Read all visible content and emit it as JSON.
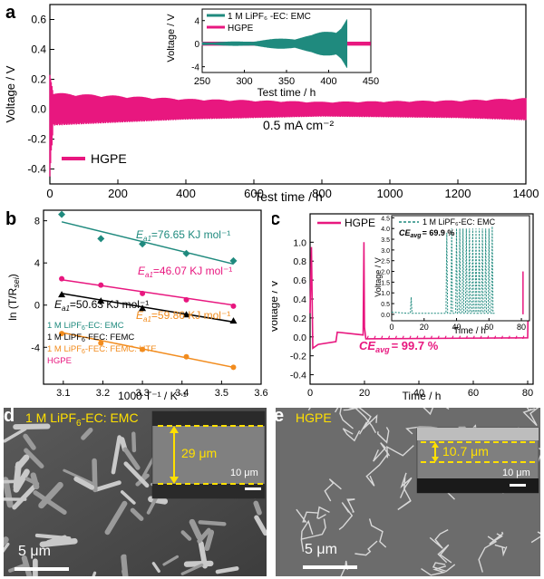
{
  "panels": {
    "a": {
      "letter": "a"
    },
    "b": {
      "letter": "b"
    },
    "c": {
      "letter": "c"
    },
    "d": {
      "letter": "d"
    },
    "e": {
      "letter": "e"
    }
  },
  "colors": {
    "hgpe": "#e8177f",
    "lipf6_ec_emc": "#1f8a7e",
    "fec_femc": "#000000",
    "fec_femc_hte": "#f28c1e",
    "dim_line": "#ffe000"
  },
  "chart_data": [
    {
      "id": "a-main",
      "type": "line",
      "xlabel": "Test time / h",
      "ylabel": "Voltage / V",
      "xlim": [
        0,
        1400
      ],
      "ylim": [
        -0.5,
        0.7
      ],
      "xticks": [
        "0",
        "200",
        "400",
        "600",
        "800",
        "1000",
        "1200",
        "1400"
      ],
      "yticks": [
        "-0.4",
        "-0.2",
        "0.0",
        "0.2",
        "0.4",
        "0.6"
      ],
      "annotation": "0.5 mA cm⁻²",
      "series": [
        {
          "name": "HGPE",
          "x_start": 0,
          "x_end": 1400,
          "envelope_upper": [
            [
              0,
              0.27
            ],
            [
              10,
              0.11
            ],
            [
              400,
              0.07
            ],
            [
              800,
              0.05
            ],
            [
              1200,
              0.06
            ],
            [
              1400,
              0.075
            ]
          ],
          "envelope_lower": [
            [
              0,
              -0.45
            ],
            [
              10,
              -0.11
            ],
            [
              400,
              -0.07
            ],
            [
              800,
              -0.05
            ],
            [
              1200,
              -0.06
            ],
            [
              1400,
              -0.075
            ]
          ]
        }
      ],
      "legend": "bottom-left",
      "inset": {
        "type": "line",
        "xlabel": "Test time / h",
        "ylabel": "Voltage / V",
        "xlim": [
          250,
          450
        ],
        "ylim": [
          -5,
          6
        ],
        "xticks": [
          "250",
          "300",
          "350",
          "400",
          "450"
        ],
        "yticks": [
          "-4",
          "0",
          "4"
        ],
        "series": [
          {
            "name": "1 M LiPF₆ -EC: EMC",
            "envelope": [
              [
                250,
                0.3
              ],
              [
                300,
                0.4
              ],
              [
                350,
                1.0
              ],
              [
                380,
                1.5
              ],
              [
                400,
                2.5
              ],
              [
                415,
                3.5
              ],
              [
                422,
                4.8
              ]
            ],
            "end_x": 422
          },
          {
            "name": "HGPE",
            "envelope": [
              [
                250,
                0.1
              ],
              [
                450,
                0.1
              ]
            ],
            "end_x": 450
          }
        ],
        "legend": "top-left"
      }
    },
    {
      "id": "b",
      "type": "scatter",
      "xlabel": "1000 T⁻¹ / K⁻¹",
      "ylabel": "ln (T/R",
      "ylabel_sub": "sei",
      "xlim": [
        3.05,
        3.6
      ],
      "ylim": [
        -7.5,
        9.0
      ],
      "xticks": [
        "3.1",
        "3.2",
        "3.3",
        "3.4",
        "3.5",
        "3.6"
      ],
      "yticks": [
        "-4",
        "0",
        "4",
        "8"
      ],
      "series": [
        {
          "name": "1 M LiPF₆-EC: EMC",
          "marker": "diamond",
          "x": [
            3.096,
            3.195,
            3.3,
            3.411,
            3.53
          ],
          "y": [
            8.6,
            6.3,
            5.8,
            4.9,
            4.2
          ],
          "fit": [
            [
              3.096,
              7.9
            ],
            [
              3.53,
              3.9
            ]
          ],
          "ea_label": "E",
          "ea_sub": "a1",
          "ea_value": "=76.65 KJ mol⁻¹"
        },
        {
          "name": "HGPE",
          "marker": "circle",
          "x": [
            3.096,
            3.195,
            3.3,
            3.411,
            3.53
          ],
          "y": [
            2.5,
            1.9,
            1.1,
            0.5,
            -0.1
          ],
          "fit": [
            [
              3.096,
              2.4
            ],
            [
              3.53,
              0.0
            ]
          ],
          "ea_label": "E",
          "ea_sub": "a1",
          "ea_value": "=46.07 KJ mol⁻¹"
        },
        {
          "name": "1 M LiPF₆-FEC: FEMC",
          "marker": "triangle",
          "x": [
            3.096,
            3.195,
            3.3,
            3.411,
            3.53
          ],
          "y": [
            1.0,
            0.4,
            -0.3,
            -0.9,
            -1.5
          ],
          "fit": [
            [
              3.096,
              1.1
            ],
            [
              3.53,
              -1.6
            ]
          ],
          "ea_label": "E",
          "ea_sub": "a1",
          "ea_value": "=50.63 KJ mol⁻¹"
        },
        {
          "name": "1 M LiPF₆-FEC: FEMC: HTE",
          "marker": "circle",
          "x": [
            3.096,
            3.195,
            3.3,
            3.411,
            3.53
          ],
          "y": [
            -2.7,
            -3.6,
            -4.2,
            -4.9,
            -5.9
          ],
          "fit": [
            [
              3.096,
              -2.6
            ],
            [
              3.53,
              -5.9
            ]
          ],
          "ea_label": "E",
          "ea_sub": "a1",
          "ea_value": "=59.86 KJ mol⁻¹"
        }
      ],
      "legend_lines": [
        {
          "prefix": "1 M LiPF",
          "sub": "6",
          "suffix": "-EC: EMC",
          "color_key": "lipf6_ec_emc"
        },
        {
          "prefix": "1 M LiPF",
          "sub": "6",
          "suffix": "-FEC: FEMC",
          "color_key": "fec_femc"
        },
        {
          "prefix": "1 M LiPF",
          "sub": "6",
          "suffix": "-FEC: FEMC: HTE",
          "color_key": "fec_femc_hte"
        },
        {
          "prefix": "HGPE",
          "sub": "",
          "suffix": "",
          "color_key": "hgpe"
        }
      ]
    },
    {
      "id": "c-main",
      "type": "line",
      "xlabel": "Time / h",
      "ylabel": "Voltage / V",
      "xlim": [
        0,
        82
      ],
      "ylim": [
        -0.5,
        1.3
      ],
      "xticks": [
        "0",
        "20",
        "40",
        "60",
        "80"
      ],
      "yticks": [
        "-0.4",
        "-0.2",
        "0.0",
        "0.2",
        "0.4",
        "0.6",
        "0.8",
        "1.0"
      ],
      "series": [
        {
          "name": "HGPE",
          "x": [
            0,
            0.5,
            1,
            3,
            9.5,
            10,
            19.5,
            19.8,
            20,
            20.5,
            21,
            80,
            80.5
          ],
          "y": [
            0.25,
            0.95,
            -0.12,
            -0.08,
            -0.05,
            0.05,
            0.02,
            1.0,
            0.1,
            -0.02,
            -0.02,
            -0.01,
            0.95
          ]
        }
      ],
      "ce_label": "CE",
      "ce_sub": "avg",
      "ce_value": "= 99.7 %",
      "legend": "top-left",
      "inset": {
        "type": "line",
        "xlabel": "Time / h",
        "ylabel": "Voltage / V",
        "xlim": [
          0,
          85
        ],
        "ylim": [
          -0.3,
          4.6
        ],
        "xticks": [
          "0",
          "20",
          "40",
          "60",
          "80"
        ],
        "yticks": [
          "0.0",
          "0.5",
          "1.0",
          "1.5",
          "2.0",
          "2.5",
          "3.0",
          "3.5",
          "4.0",
          "4.5"
        ],
        "series": [
          {
            "name": "1 M LiPF₆-EC: EMC",
            "style": "dashed",
            "spikes_x": [
              12,
              34,
              37,
              40,
              42,
              44,
              46,
              48,
              50,
              52,
              54,
              56,
              58,
              60,
              62
            ],
            "spikes_y": [
              0.8,
              3.8,
              4.0,
              4.0,
              4.0,
              4.0,
              4.0,
              4.0,
              4.0,
              4.0,
              4.0,
              4.0,
              4.0,
              4.0,
              4.1
            ]
          }
        ],
        "ce_label": "CE",
        "ce_sub": "avg",
        "ce_value": "= 69.9 %"
      }
    }
  ],
  "sem": {
    "d": {
      "label_prefix": "1 M LiPF",
      "label_sub": "6",
      "label_suffix": "-EC: EMC",
      "thickness": "29 μm",
      "inset_scale": "10 μm",
      "main_scale": "5 μm"
    },
    "e": {
      "label": "HGPE",
      "thickness": "10.7 μm",
      "inset_scale": "10 μm",
      "main_scale": "5 μm"
    }
  }
}
